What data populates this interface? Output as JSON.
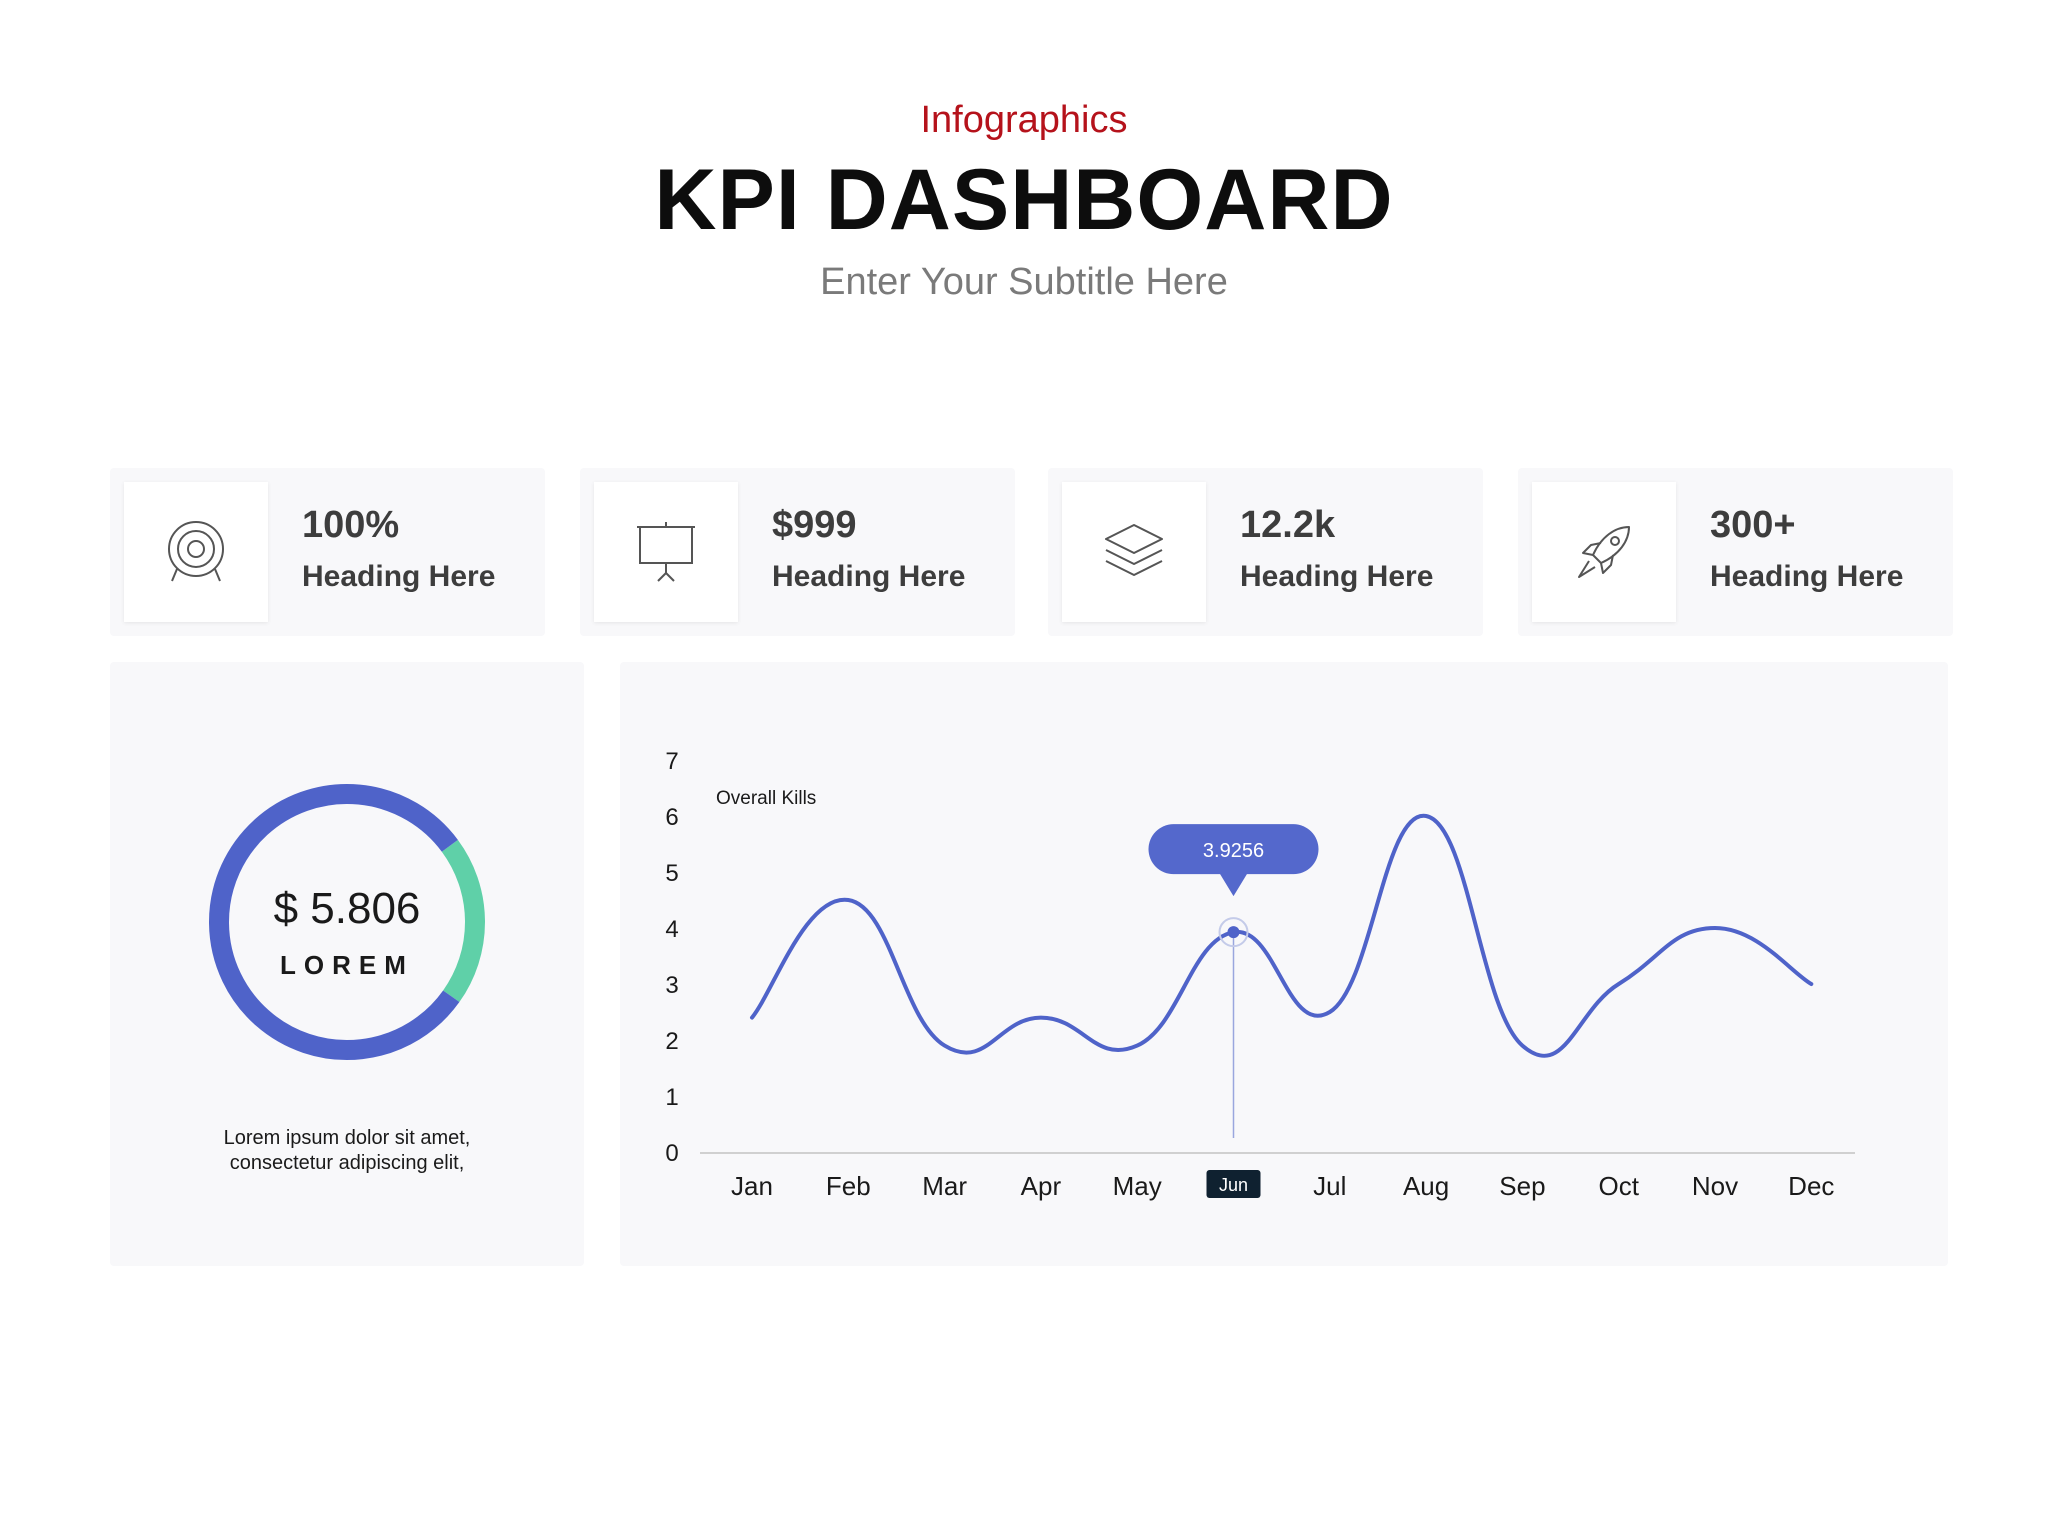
{
  "header": {
    "eyebrow": "Infographics",
    "title": "KPI DASHBOARD",
    "subtitle": "Enter Your Subtitle Here"
  },
  "kpis": [
    {
      "value": "100%",
      "heading": "Heading Here",
      "icon": "target-icon"
    },
    {
      "value": "$999",
      "heading": "Heading Here",
      "icon": "presentation-board-icon"
    },
    {
      "value": "12.2k",
      "heading": "Heading Here",
      "icon": "layers-icon"
    },
    {
      "value": "300+",
      "heading": "Heading Here",
      "icon": "rocket-icon"
    }
  ],
  "donut": {
    "value": "$ 5.806",
    "label": "LOREM",
    "description_line1": "Lorem ipsum dolor sit amet,",
    "description_line2": "consectetur adipiscing elit,",
    "segments": [
      {
        "fraction": 0.8,
        "color": "#4f63c9"
      },
      {
        "fraction": 0.2,
        "color": "#5fd0a8"
      }
    ]
  },
  "chart_data": {
    "type": "line",
    "categories": [
      "Jan",
      "Feb",
      "Mar",
      "Apr",
      "May",
      "Jun",
      "Jul",
      "Aug",
      "Sep",
      "Oct",
      "Nov",
      "Dec"
    ],
    "series": [
      {
        "name": "Overall Kills",
        "values": [
          2.4,
          4.5,
          1.9,
          2.4,
          1.9,
          3.9256,
          2.5,
          6.0,
          1.9,
          3.0,
          4.0,
          3.0
        ],
        "color": "#4f63c9"
      }
    ],
    "yticks": [
      0,
      1,
      2,
      3,
      4,
      5,
      6,
      7
    ],
    "ylim": [
      0,
      7
    ],
    "grid": false,
    "tooltip": {
      "category": "Jun",
      "index": 5,
      "value": "3.9256"
    }
  }
}
